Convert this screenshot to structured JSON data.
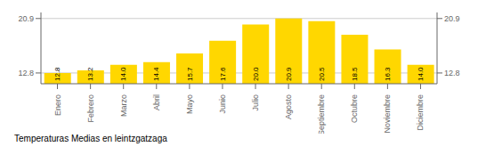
{
  "chart_data": {
    "type": "bar",
    "title": "Temperaturas Medias en leintzgatzaga",
    "categories": [
      "Enero",
      "Febrero",
      "Marzo",
      "Abril",
      "Mayo",
      "Junio",
      "Julio",
      "Agosto",
      "Septiembre",
      "Octubre",
      "Noviembre",
      "Diciembre"
    ],
    "values": [
      12.8,
      13.2,
      14.0,
      14.4,
      15.7,
      17.6,
      20.0,
      20.9,
      20.5,
      18.5,
      16.3,
      14.0
    ],
    "value_labels": [
      "12.8",
      "13.2",
      "14.0",
      "14.4",
      "15.7",
      "17.6",
      "20.0",
      "20.9",
      "20.5",
      "18.5",
      "16.3",
      "14.0"
    ],
    "color": "#FFD700",
    "ylim": [
      11.2,
      21.8
    ],
    "yticks": [
      12.8,
      20.9
    ],
    "y2lim": [
      11.2,
      21.8
    ],
    "y2ticks": [
      12.8,
      20.9
    ],
    "grid": true,
    "data_labels": true
  }
}
